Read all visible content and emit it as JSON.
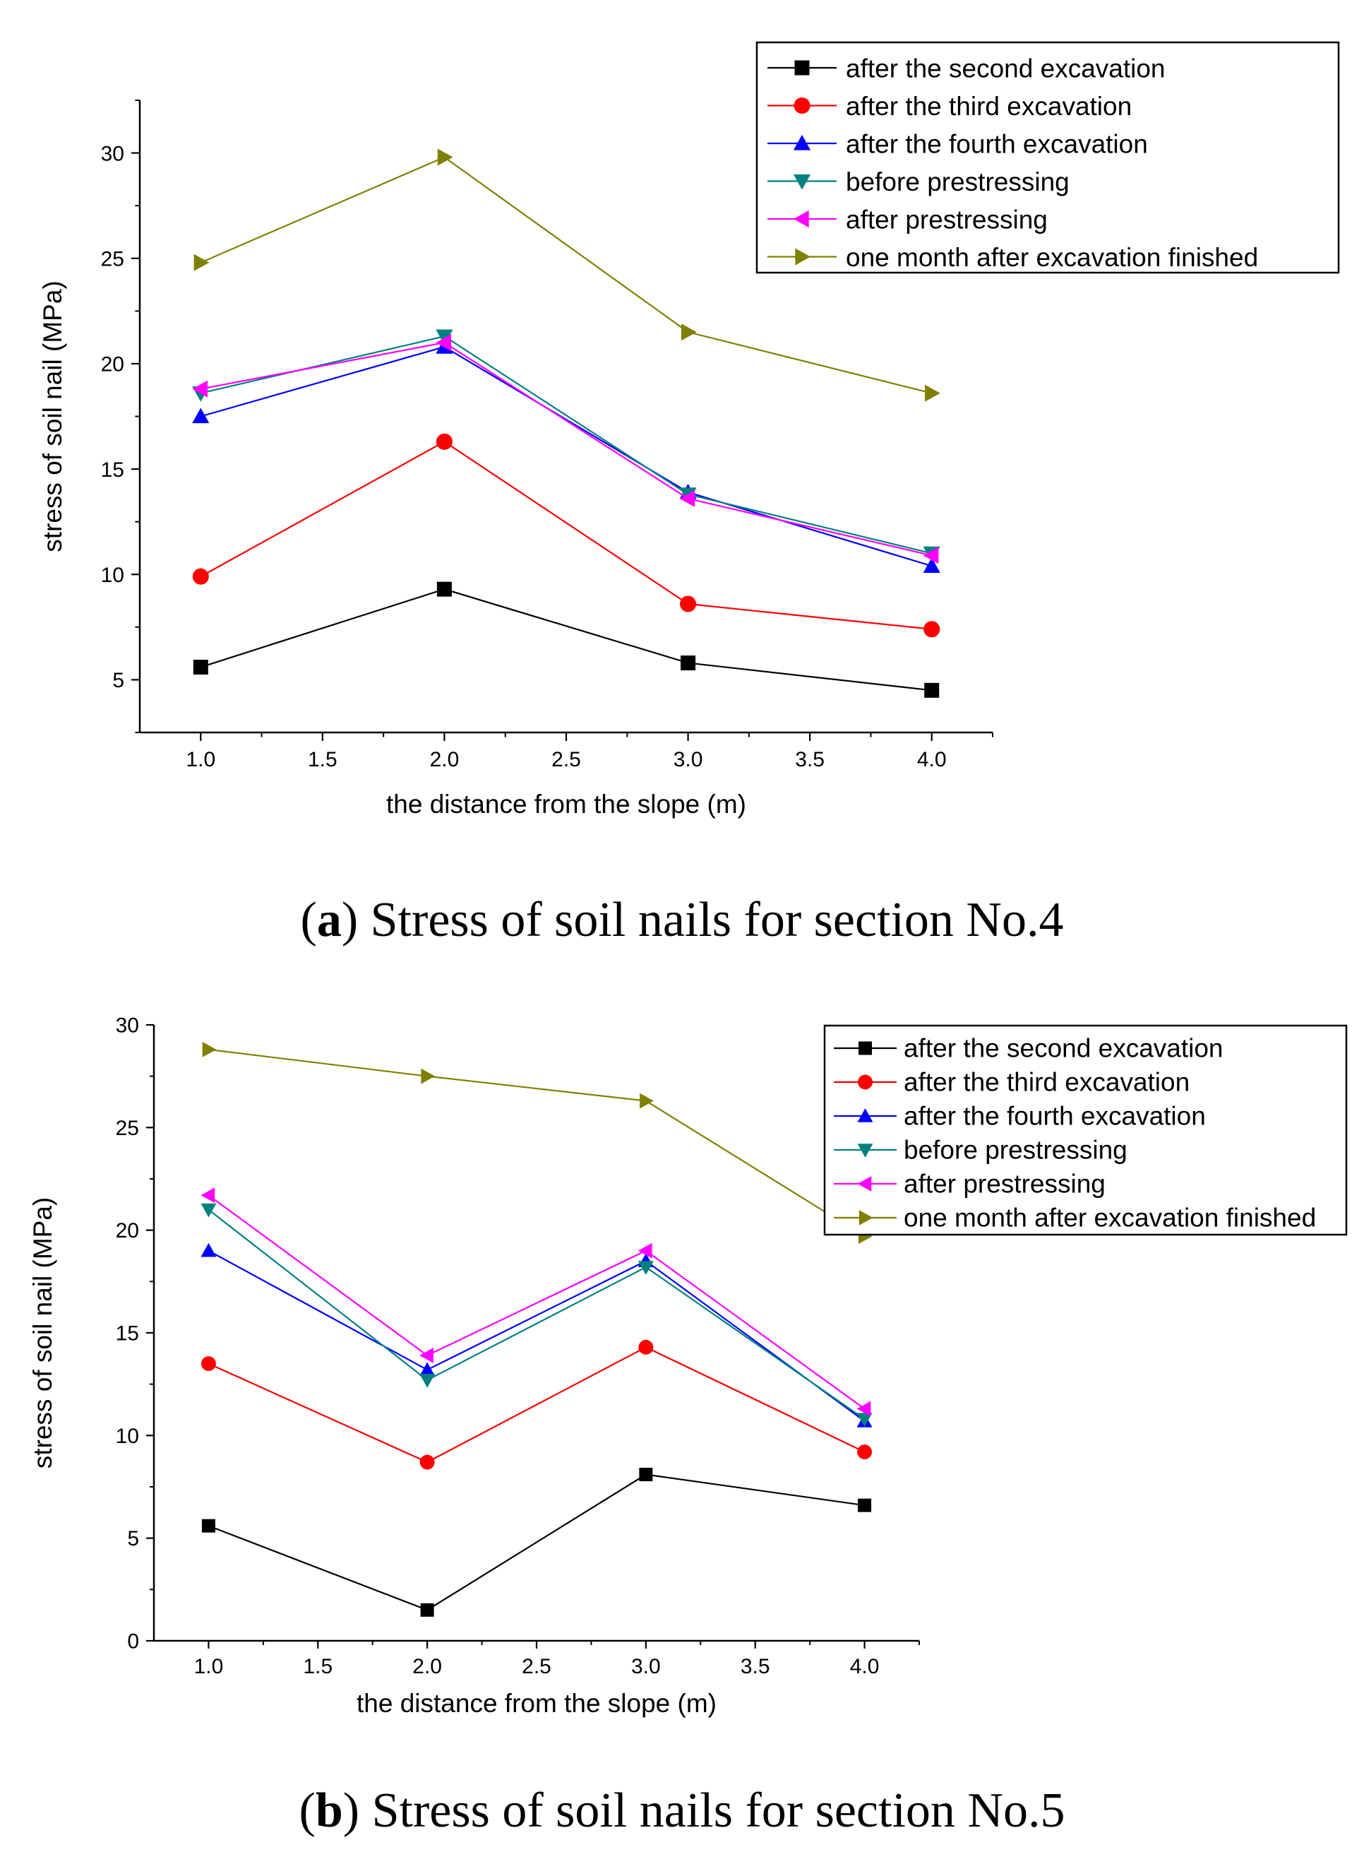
{
  "chart_data": [
    {
      "type": "line",
      "caption": {
        "open": "(",
        "letter": "a",
        "close": ")",
        "text": " Stress of soil nails for section No.4"
      },
      "xlabel": "the distance from the slope (m)",
      "ylabel": "stress of soil nail (MPa)",
      "xlim": [
        0.75,
        4.25
      ],
      "ylim": [
        2.5,
        32.5
      ],
      "xticks": [
        1.0,
        1.5,
        2.0,
        2.5,
        3.0,
        3.5,
        4.0
      ],
      "xtick_labels": [
        "1.0",
        "1.5",
        "2.0",
        "2.5",
        "3.0",
        "3.5",
        "4.0"
      ],
      "yticks": [
        5,
        10,
        15,
        20,
        25,
        30
      ],
      "ytick_labels": [
        "5",
        "10",
        "15",
        "20",
        "25",
        "30"
      ],
      "legend_position": "top-right",
      "x": [
        1.0,
        2.0,
        3.0,
        4.0
      ],
      "series": [
        {
          "name": "after the second excavation",
          "marker": "square",
          "color": "#000000",
          "values": [
            5.6,
            9.3,
            5.8,
            4.5
          ]
        },
        {
          "name": "after the third excavation",
          "marker": "circle",
          "color": "#ff0000",
          "values": [
            9.9,
            16.3,
            8.6,
            7.4
          ]
        },
        {
          "name": "after the fourth excavation",
          "marker": "triangle-up",
          "color": "#0000ff",
          "values": [
            17.5,
            20.8,
            13.9,
            10.4
          ]
        },
        {
          "name": "before prestressing",
          "marker": "triangle-down",
          "color": "#008080",
          "values": [
            18.6,
            21.3,
            13.8,
            11.0
          ]
        },
        {
          "name": "after prestressing",
          "marker": "triangle-left",
          "color": "#ff00ff",
          "values": [
            18.8,
            21.0,
            13.6,
            10.9
          ]
        },
        {
          "name": "one month after excavation finished",
          "marker": "triangle-right",
          "color": "#808000",
          "values": [
            24.8,
            29.8,
            21.5,
            18.6
          ]
        }
      ]
    },
    {
      "type": "line",
      "caption": {
        "open": "(",
        "letter": "b",
        "close": ")",
        "text": " Stress of soil nails for section No.5"
      },
      "xlabel": "the distance from the slope (m)",
      "ylabel": "stress of soil nail (MPa)",
      "xlim": [
        0.75,
        4.25
      ],
      "ylim": [
        0,
        30
      ],
      "xticks": [
        1.0,
        1.5,
        2.0,
        2.5,
        3.0,
        3.5,
        4.0
      ],
      "xtick_labels": [
        "1.0",
        "1.5",
        "2.0",
        "2.5",
        "3.0",
        "3.5",
        "4.0"
      ],
      "yticks": [
        0,
        5,
        10,
        15,
        20,
        25,
        30
      ],
      "ytick_labels": [
        "0",
        "5",
        "10",
        "15",
        "20",
        "25",
        "30"
      ],
      "legend_position": "top-right",
      "x": [
        1.0,
        2.0,
        3.0,
        4.0
      ],
      "series": [
        {
          "name": "after the second excavation",
          "marker": "square",
          "color": "#000000",
          "values": [
            5.6,
            1.5,
            8.1,
            6.6
          ]
        },
        {
          "name": "after the third excavation",
          "marker": "circle",
          "color": "#ff0000",
          "values": [
            13.5,
            8.7,
            14.3,
            9.2
          ]
        },
        {
          "name": "after the fourth excavation",
          "marker": "triangle-up",
          "color": "#0000ff",
          "values": [
            19.0,
            13.2,
            18.5,
            10.7
          ]
        },
        {
          "name": "before prestressing",
          "marker": "triangle-down",
          "color": "#008080",
          "values": [
            21.0,
            12.7,
            18.2,
            10.8
          ]
        },
        {
          "name": "after prestressing",
          "marker": "triangle-left",
          "color": "#ff00ff",
          "values": [
            21.7,
            13.9,
            19.0,
            11.3
          ]
        },
        {
          "name": "one month after excavation finished",
          "marker": "triangle-right",
          "color": "#808000",
          "values": [
            28.8,
            27.5,
            26.3,
            19.7
          ]
        }
      ]
    }
  ]
}
